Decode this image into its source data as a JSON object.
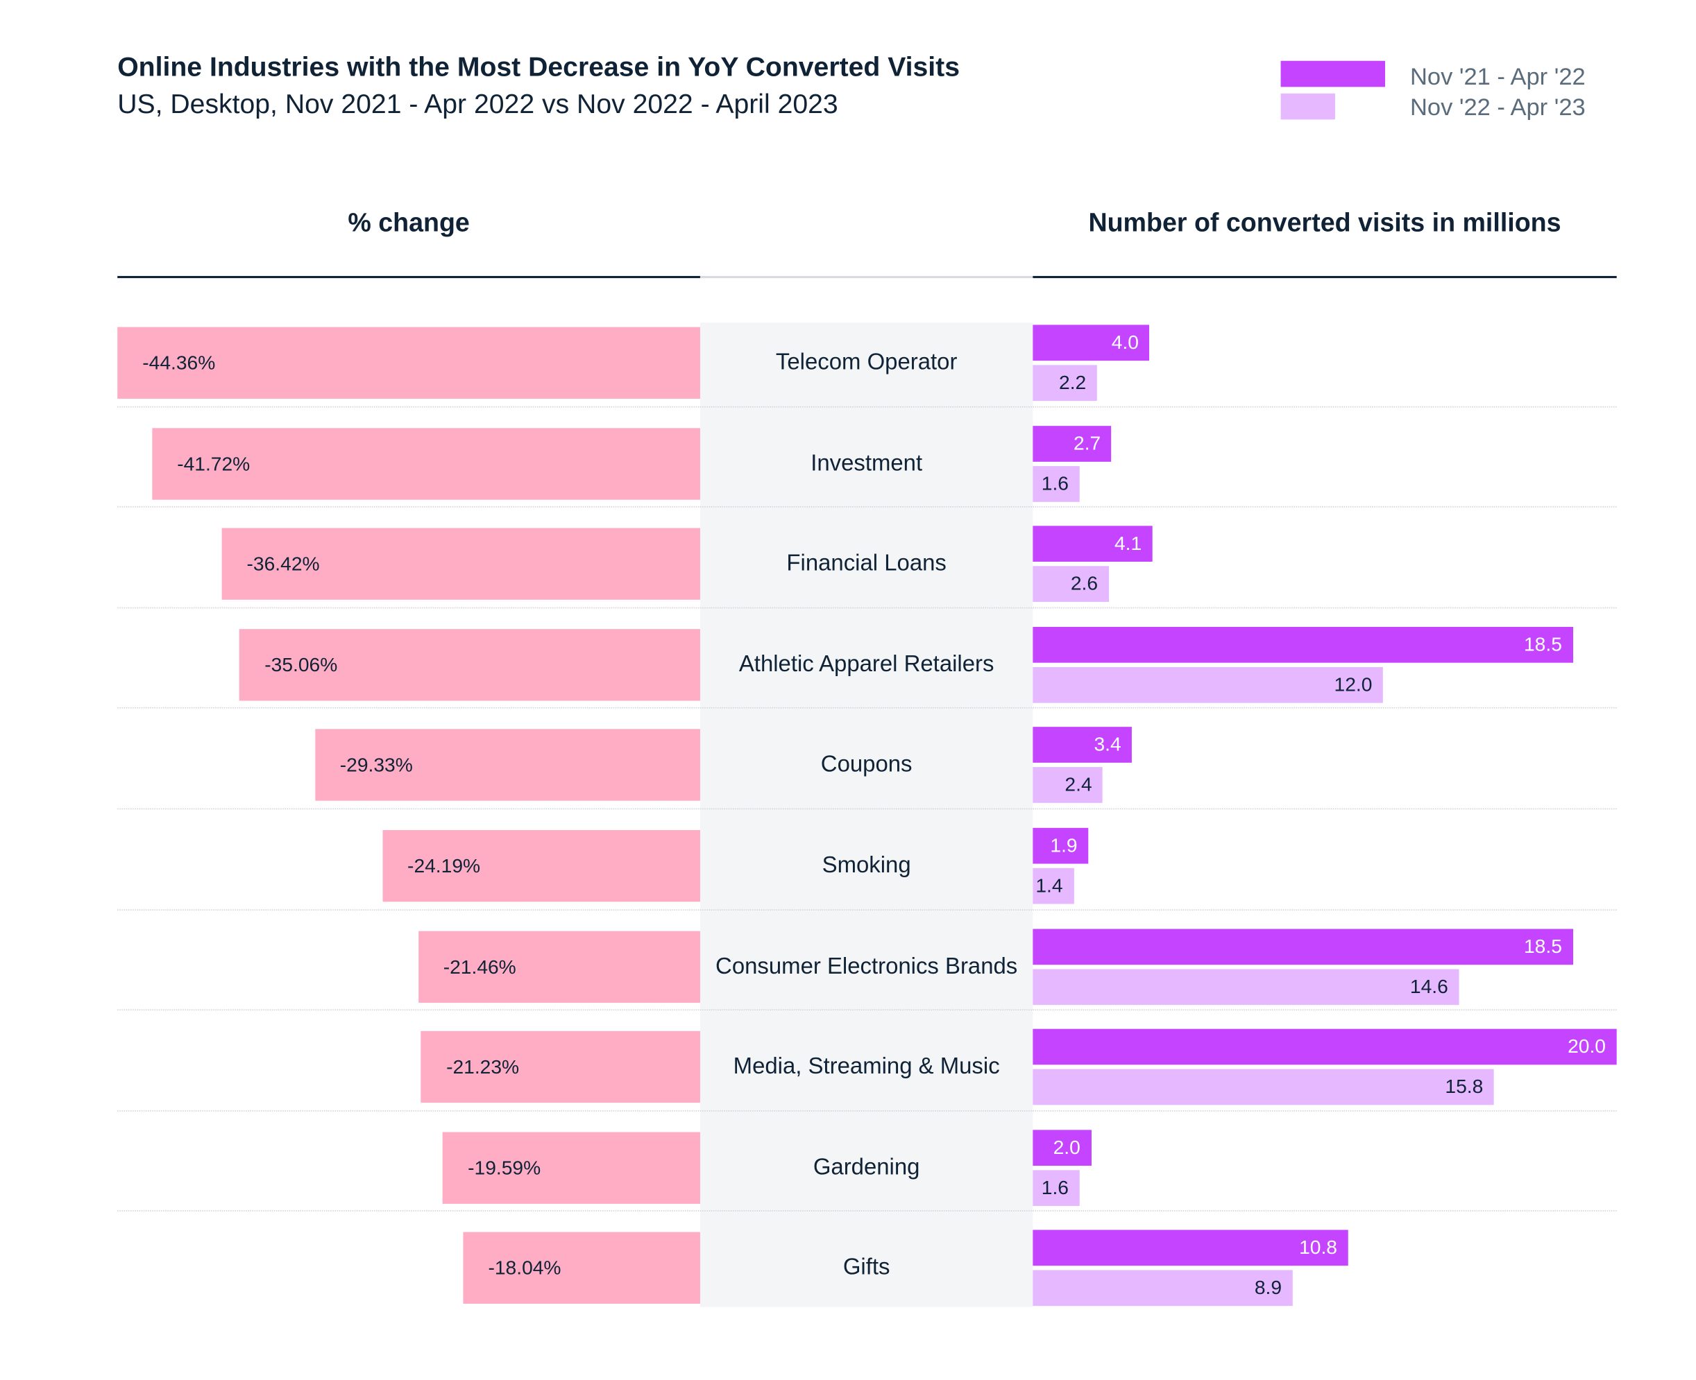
{
  "chart_data": {
    "type": "bar",
    "title": "Online Industries with the Most Decrease in YoY Converted Visits",
    "subtitle": "US, Desktop, Nov 2021 - Apr 2022 vs Nov 2022 - April 2023",
    "left_panel_label": "% change",
    "right_panel_label": "Number of converted visits in millions",
    "legend_placement": "top-right",
    "categories": [
      "Telecom Operator",
      "Investment",
      "Financial Loans",
      "Athletic Apparel Retailers",
      "Coupons",
      "Smoking",
      "Consumer Electronics Brands",
      "Media, Streaming & Music",
      "Gardening",
      "Gifts"
    ],
    "pct_change": [
      -44.36,
      -41.72,
      -36.42,
      -35.06,
      -29.33,
      -24.19,
      -21.46,
      -21.23,
      -19.59,
      -18.04
    ],
    "pct_labels": [
      "-44.36%",
      "-41.72%",
      "-36.42%",
      "-35.06%",
      "-29.33%",
      "-24.19%",
      "-21.46%",
      "-21.23%",
      "-19.59%",
      "-18.04%"
    ],
    "series": [
      {
        "name": "Nov '21 - Apr '22",
        "color": "#c444ff",
        "values": [
          4.0,
          2.7,
          4.1,
          18.5,
          3.4,
          1.9,
          18.5,
          20.0,
          2.0,
          10.8
        ],
        "labels": [
          "4.0",
          "2.7",
          "4.1",
          "18.5",
          "3.4",
          "1.9",
          "18.5",
          "20.0",
          "2.0",
          "10.8"
        ]
      },
      {
        "name": "Nov '22 - Apr '23",
        "color": "#e6b8ff",
        "values": [
          2.2,
          1.6,
          2.6,
          12.0,
          2.4,
          1.4,
          14.6,
          15.8,
          1.6,
          8.9
        ],
        "labels": [
          "2.2",
          "1.6",
          "2.6",
          "12.0",
          "2.4",
          "1.4",
          "14.6",
          "15.8",
          "1.6",
          "8.9"
        ]
      }
    ],
    "pct_color": "#ffadc5",
    "pct_range": [
      -44.36,
      0
    ],
    "visits_range": [
      0,
      20.0
    ],
    "grid": false
  }
}
